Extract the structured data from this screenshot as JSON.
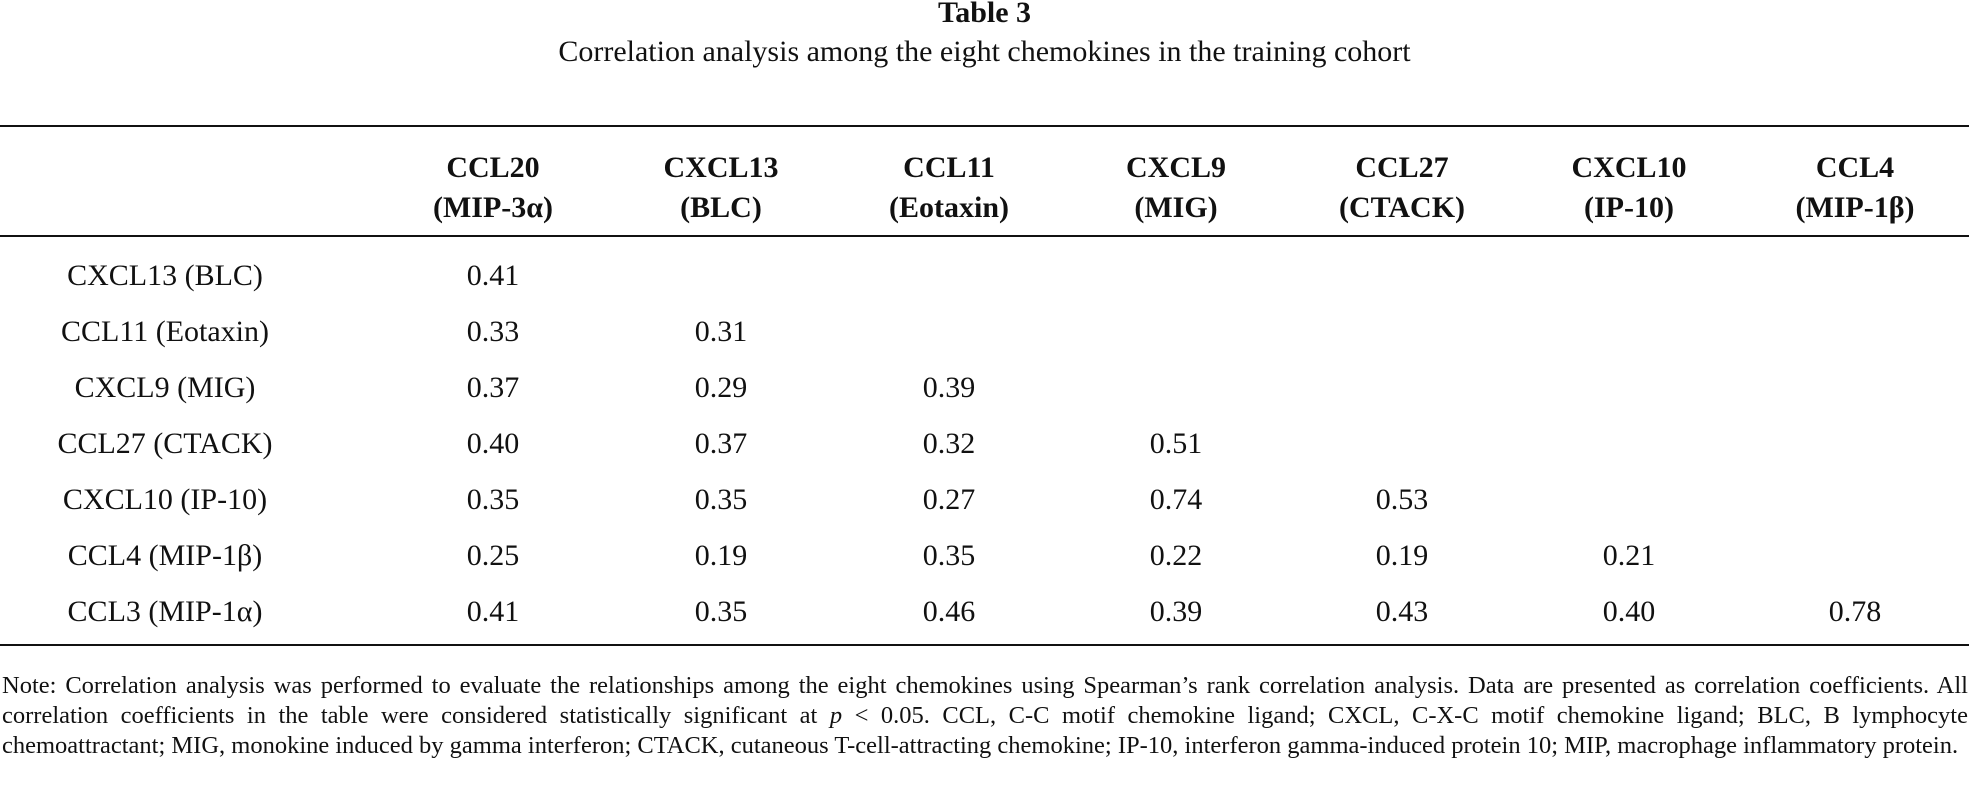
{
  "title": "Table 3",
  "caption": "Correlation analysis among the eight chemokines in the training cohort",
  "columns": [
    {
      "line1": "CCL20",
      "line2": "(MIP-3α)"
    },
    {
      "line1": "CXCL13",
      "line2": "(BLC)"
    },
    {
      "line1": "CCL11",
      "line2": "(Eotaxin)"
    },
    {
      "line1": "CXCL9",
      "line2": "(MIG)"
    },
    {
      "line1": "CCL27",
      "line2": "(CTACK)"
    },
    {
      "line1": "CXCL10",
      "line2": "(IP-10)"
    },
    {
      "line1": "CCL4",
      "line2": "(MIP-1β)"
    }
  ],
  "rows": [
    {
      "label": "CXCL13 (BLC)",
      "values": [
        "0.41"
      ]
    },
    {
      "label": "CCL11 (Eotaxin)",
      "values": [
        "0.33",
        "0.31"
      ]
    },
    {
      "label": "CXCL9 (MIG)",
      "values": [
        "0.37",
        "0.29",
        "0.39"
      ]
    },
    {
      "label": "CCL27 (CTACK)",
      "values": [
        "0.40",
        "0.37",
        "0.32",
        "0.51"
      ]
    },
    {
      "label": "CXCL10 (IP-10)",
      "values": [
        "0.35",
        "0.35",
        "0.27",
        "0.74",
        "0.53"
      ]
    },
    {
      "label": "CCL4 (MIP-1β)",
      "values": [
        "0.25",
        "0.19",
        "0.35",
        "0.22",
        "0.19",
        "0.21"
      ]
    },
    {
      "label": "CCL3 (MIP-1α)",
      "values": [
        "0.41",
        "0.35",
        "0.46",
        "0.39",
        "0.43",
        "0.40",
        "0.78"
      ]
    }
  ],
  "note": {
    "part1": "Note: Correlation analysis was performed to evaluate the relationships among the eight chemokines using Spearman’s rank correlation analysis. Data are presented as correlation coefficients. All correlation coefficients in the table were considered statistically significant at ",
    "p_symbol": "p",
    "part2": " < 0.05. CCL, C-C motif chemokine ligand; CXCL, C-X-C motif chemokine ligand; BLC, B lymphocyte chemoattractant; MIG, monokine induced by gamma interferon; CTACK, cutaneous T-cell-attracting chemokine; IP-10, interferon gamma-induced protein 10; MIP, macrophage inflammatory protein."
  }
}
